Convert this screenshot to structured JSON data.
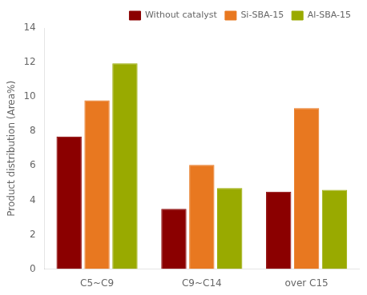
{
  "chart_data": {
    "type": "bar",
    "categories": [
      "C5~C9",
      "C9~C14",
      "over C15"
    ],
    "series": [
      {
        "name": "Without catalyst",
        "color": "#8B0000",
        "values": [
          7.7,
          3.5,
          4.5
        ]
      },
      {
        "name": "Si-SBA-15",
        "color": "#E87820",
        "values": [
          9.8,
          6.05,
          9.35
        ]
      },
      {
        "name": "Al-SBA-15",
        "color": "#99AA00",
        "values": [
          11.95,
          4.7,
          4.6
        ]
      }
    ],
    "ylabel": "Product distribution (Area%)",
    "ylim": [
      0,
      14
    ],
    "yticks": [
      0,
      2,
      4,
      6,
      8,
      10,
      12,
      14
    ],
    "grid": false,
    "legend": "upper right"
  }
}
